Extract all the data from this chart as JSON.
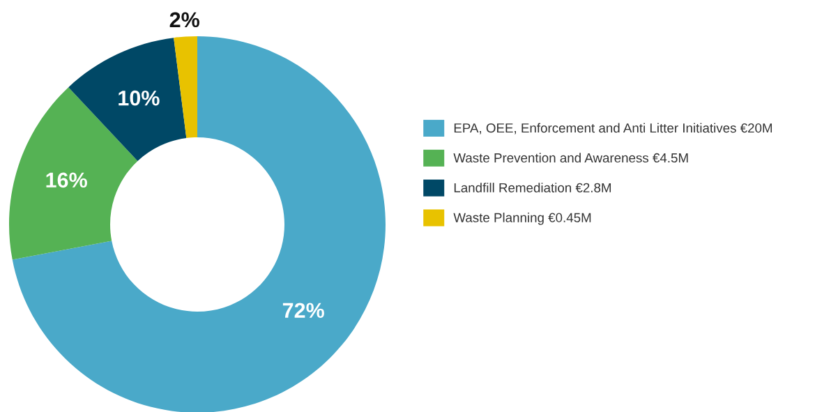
{
  "chart_data": {
    "type": "donut",
    "categories": [
      "EPA, OEE, Enforcement and Anti Litter Initiatives €20M",
      "Waste Prevention and Awareness €4.5M",
      "Landfill Remediation €2.8M",
      "Waste Planning €0.45M"
    ],
    "values": [
      72,
      16,
      10,
      2
    ],
    "colors": [
      "#4aa9c9",
      "#55b254",
      "#004866",
      "#e8c200"
    ],
    "value_labels": [
      "72%",
      "16%",
      "10%",
      "2%"
    ],
    "legend": "right"
  }
}
